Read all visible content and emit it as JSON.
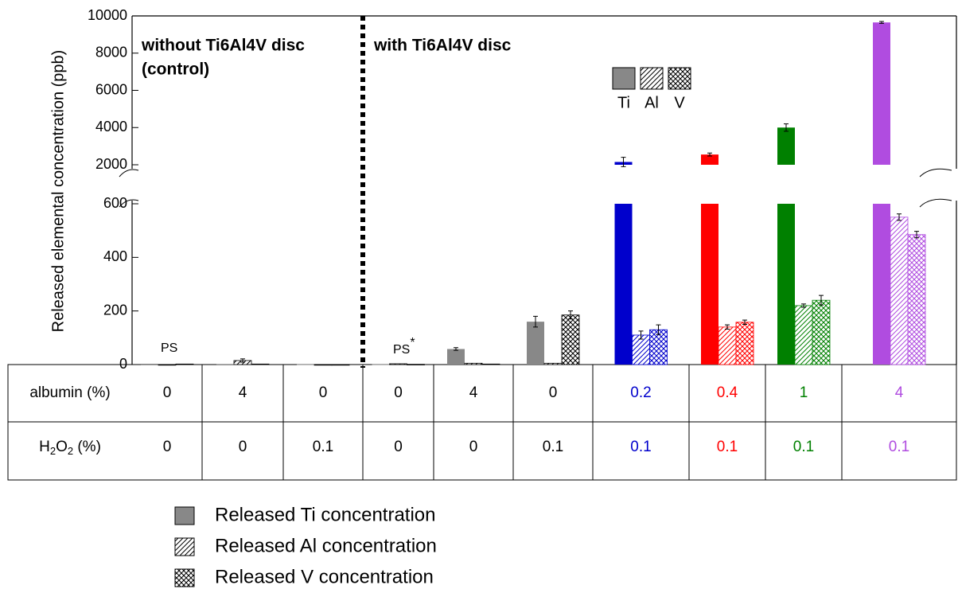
{
  "chart_data": {
    "type": "bar",
    "y_label": "Released elemental concentration (ppb)",
    "ylim": [
      0,
      10000
    ],
    "axis_break": [
      600,
      2000
    ],
    "yticks": [
      0,
      200,
      400,
      600,
      2000,
      4000,
      6000,
      8000,
      10000
    ],
    "annotations": [
      "without Ti6Al4V disc",
      "(control)",
      "with Ti6Al4V disc"
    ],
    "ps_labels": [
      "PS",
      "PS"
    ],
    "ps_star": "*",
    "inset_legend": [
      "Ti",
      "Al",
      "V"
    ],
    "group_colors": [
      "#888888",
      "#888888",
      "#888888",
      "#888888",
      "#888888",
      "#888888",
      "#0000cc",
      "#ff0000",
      "#008000",
      "#b04ce0"
    ],
    "hatch_colors": [
      "#000000",
      "#000000",
      "#000000",
      "#000000",
      "#000000",
      "#000000",
      "#0000cc",
      "#ff0000",
      "#008000",
      "#b04ce0"
    ],
    "series": [
      {
        "name": "Released Ti concentration",
        "values": [
          0,
          2,
          1,
          1,
          58,
          160,
          2150,
          2550,
          4000,
          9650
        ],
        "errors": [
          null,
          null,
          null,
          null,
          5,
          20,
          250,
          80,
          200,
          50
        ]
      },
      {
        "name": "Released Al concentration",
        "values": [
          0,
          15,
          0,
          3,
          5,
          5,
          110,
          140,
          220,
          550
        ],
        "errors": [
          null,
          6,
          null,
          null,
          null,
          null,
          15,
          8,
          6,
          12
        ]
      },
      {
        "name": "Released V concentration",
        "values": [
          2,
          2,
          0,
          1,
          2,
          185,
          130,
          158,
          240,
          485
        ],
        "errors": [
          null,
          null,
          null,
          null,
          null,
          15,
          18,
          8,
          18,
          12
        ]
      }
    ],
    "table": {
      "albumin_label": "albumin (%)",
      "h2o2_label": [
        "H",
        "2",
        "O",
        "2",
        " (%)"
      ],
      "albumin": [
        0,
        4,
        0,
        0,
        4,
        0,
        0.2,
        0.4,
        1,
        4
      ],
      "h2o2": [
        0,
        0,
        0.1,
        0,
        0,
        0.1,
        0.1,
        0.1,
        0.1,
        0.1
      ]
    }
  }
}
